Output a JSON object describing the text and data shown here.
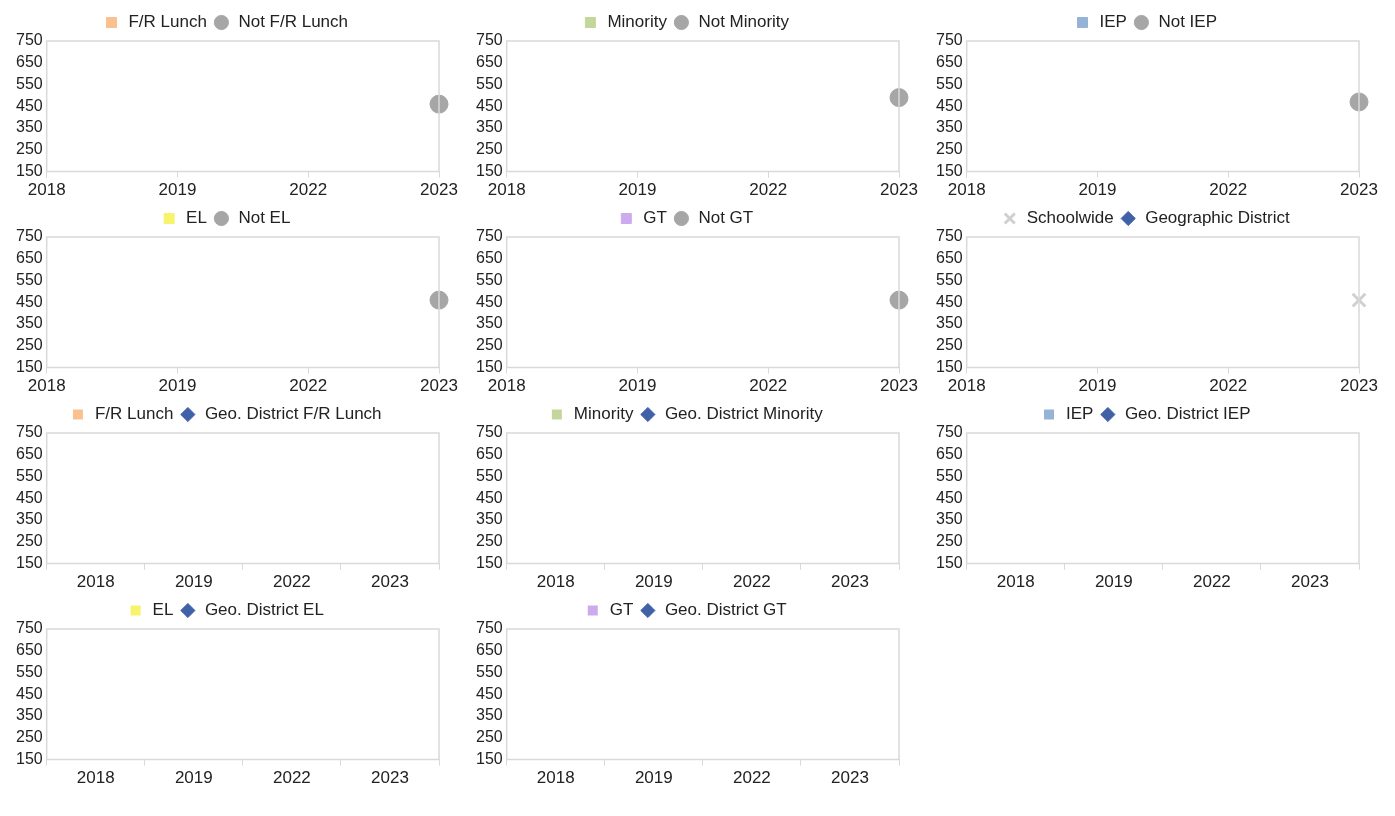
{
  "chart_data": [
    {
      "type": "line",
      "categories": [
        "2018",
        "2019",
        "2022",
        "2023"
      ],
      "series": [
        {
          "name": "F/R Lunch",
          "color": "#fac090",
          "marker": "square",
          "values": [
            null,
            null,
            null,
            null
          ]
        },
        {
          "name": "Not F/R Lunch",
          "color": "#a6a6a6",
          "marker": "circle",
          "values": [
            null,
            null,
            null,
            460
          ]
        }
      ],
      "ylim": [
        150,
        750
      ],
      "yticks": [
        150,
        250,
        350,
        450,
        550,
        650,
        750
      ],
      "grid": false,
      "legend": "top"
    },
    {
      "type": "line",
      "categories": [
        "2018",
        "2019",
        "2022",
        "2023"
      ],
      "series": [
        {
          "name": "Minority",
          "color": "#c3d69b",
          "marker": "square",
          "values": [
            null,
            null,
            null,
            null
          ]
        },
        {
          "name": "Not Minority",
          "color": "#a6a6a6",
          "marker": "circle",
          "values": [
            null,
            null,
            null,
            490
          ]
        }
      ],
      "ylim": [
        150,
        750
      ],
      "yticks": [
        150,
        250,
        350,
        450,
        550,
        650,
        750
      ],
      "grid": false,
      "legend": "top"
    },
    {
      "type": "line",
      "categories": [
        "2018",
        "2019",
        "2022",
        "2023"
      ],
      "series": [
        {
          "name": "IEP",
          "color": "#95b3d7",
          "marker": "square",
          "values": [
            null,
            null,
            null,
            null
          ]
        },
        {
          "name": "Not IEP",
          "color": "#a6a6a6",
          "marker": "circle",
          "values": [
            null,
            null,
            null,
            470
          ]
        }
      ],
      "ylim": [
        150,
        750
      ],
      "yticks": [
        150,
        250,
        350,
        450,
        550,
        650,
        750
      ],
      "grid": false,
      "legend": "top"
    },
    {
      "type": "line",
      "categories": [
        "2018",
        "2019",
        "2022",
        "2023"
      ],
      "series": [
        {
          "name": "EL",
          "color": "#f7f36b",
          "marker": "square",
          "values": [
            null,
            null,
            null,
            null
          ]
        },
        {
          "name": "Not EL",
          "color": "#a6a6a6",
          "marker": "circle",
          "values": [
            null,
            null,
            null,
            460
          ]
        }
      ],
      "ylim": [
        150,
        750
      ],
      "yticks": [
        150,
        250,
        350,
        450,
        550,
        650,
        750
      ],
      "grid": false,
      "legend": "top"
    },
    {
      "type": "line",
      "categories": [
        "2018",
        "2019",
        "2022",
        "2023"
      ],
      "series": [
        {
          "name": "GT",
          "color": "#ccaaee",
          "marker": "square",
          "values": [
            null,
            null,
            null,
            null
          ]
        },
        {
          "name": "Not GT",
          "color": "#a6a6a6",
          "marker": "circle",
          "values": [
            null,
            null,
            null,
            460
          ]
        }
      ],
      "ylim": [
        150,
        750
      ],
      "yticks": [
        150,
        250,
        350,
        450,
        550,
        650,
        750
      ],
      "grid": false,
      "legend": "top"
    },
    {
      "type": "line",
      "categories": [
        "2018",
        "2019",
        "2022",
        "2023"
      ],
      "series": [
        {
          "name": "Schoolwide",
          "color": "#d0d0d0",
          "marker": "cross",
          "values": [
            null,
            null,
            null,
            460
          ]
        },
        {
          "name": "Geographic District",
          "color": "#4060a8",
          "marker": "diamond",
          "values": [
            null,
            null,
            null,
            null
          ]
        }
      ],
      "ylim": [
        150,
        750
      ],
      "yticks": [
        150,
        250,
        350,
        450,
        550,
        650,
        750
      ],
      "grid": false,
      "legend": "top"
    },
    {
      "type": "bar",
      "categories": [
        "2018",
        "2019",
        "2022",
        "2023"
      ],
      "series": [
        {
          "name": "F/R Lunch",
          "color": "#fac090",
          "values": [
            null,
            null,
            null,
            null
          ]
        },
        {
          "name": "Geo. District F/R Lunch",
          "type": "line",
          "color": "#4060a8",
          "marker": "diamond",
          "values": [
            null,
            null,
            null,
            null
          ]
        }
      ],
      "ylim": [
        150,
        750
      ],
      "yticks": [
        150,
        250,
        350,
        450,
        550,
        650,
        750
      ],
      "grid": false,
      "legend": "top"
    },
    {
      "type": "bar",
      "categories": [
        "2018",
        "2019",
        "2022",
        "2023"
      ],
      "series": [
        {
          "name": "Minority",
          "color": "#c3d69b",
          "values": [
            null,
            null,
            null,
            null
          ]
        },
        {
          "name": "Geo. District Minority",
          "type": "line",
          "color": "#4060a8",
          "marker": "diamond",
          "values": [
            null,
            null,
            null,
            null
          ]
        }
      ],
      "ylim": [
        150,
        750
      ],
      "yticks": [
        150,
        250,
        350,
        450,
        550,
        650,
        750
      ],
      "grid": false,
      "legend": "top"
    },
    {
      "type": "bar",
      "categories": [
        "2018",
        "2019",
        "2022",
        "2023"
      ],
      "series": [
        {
          "name": "IEP",
          "color": "#95b3d7",
          "values": [
            null,
            null,
            null,
            null
          ]
        },
        {
          "name": "Geo. District IEP",
          "type": "line",
          "color": "#4060a8",
          "marker": "diamond",
          "values": [
            null,
            null,
            null,
            null
          ]
        }
      ],
      "ylim": [
        150,
        750
      ],
      "yticks": [
        150,
        250,
        350,
        450,
        550,
        650,
        750
      ],
      "grid": false,
      "legend": "top"
    },
    {
      "type": "bar",
      "categories": [
        "2018",
        "2019",
        "2022",
        "2023"
      ],
      "series": [
        {
          "name": "EL",
          "color": "#f7f36b",
          "values": [
            null,
            null,
            null,
            null
          ]
        },
        {
          "name": "Geo. District EL",
          "type": "line",
          "color": "#4060a8",
          "marker": "diamond",
          "values": [
            null,
            null,
            null,
            null
          ]
        }
      ],
      "ylim": [
        150,
        750
      ],
      "yticks": [
        150,
        250,
        350,
        450,
        550,
        650,
        750
      ],
      "grid": false,
      "legend": "top"
    },
    {
      "type": "bar",
      "categories": [
        "2018",
        "2019",
        "2022",
        "2023"
      ],
      "series": [
        {
          "name": "GT",
          "color": "#ccaaee",
          "values": [
            null,
            null,
            null,
            null
          ]
        },
        {
          "name": "Geo. District GT",
          "type": "line",
          "color": "#4060a8",
          "marker": "diamond",
          "values": [
            null,
            null,
            null,
            null
          ]
        }
      ],
      "ylim": [
        150,
        750
      ],
      "yticks": [
        150,
        250,
        350,
        450,
        550,
        650,
        750
      ],
      "grid": false,
      "legend": "top"
    }
  ]
}
